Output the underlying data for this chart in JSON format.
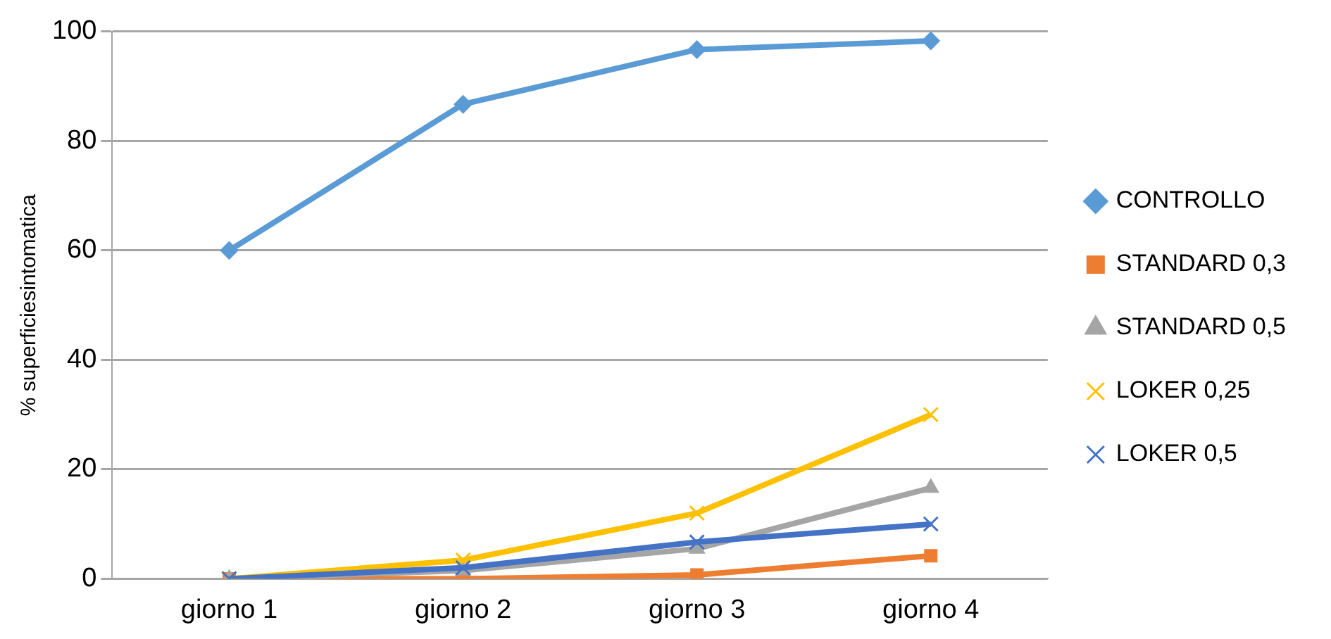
{
  "chart_data": {
    "type": "line",
    "ylabel": "% superficiesintomatica",
    "categories": [
      "giorno 1",
      "giorno 2",
      "giorno 3",
      "giorno 4"
    ],
    "series": [
      {
        "name": "CONTROLLO",
        "color": "#5b9bd5",
        "marker": "diamond",
        "values": [
          60,
          86.7,
          96.7,
          98.3
        ]
      },
      {
        "name": "STANDARD 0,3",
        "color": "#ed7d31",
        "marker": "square",
        "values": [
          0,
          0,
          0.7,
          4.2
        ]
      },
      {
        "name": "STANDARD 0,5",
        "color": "#a5a5a5",
        "marker": "triangle",
        "values": [
          0,
          1.5,
          5.5,
          16.6
        ]
      },
      {
        "name": "LOKER 0,25",
        "color": "#ffc000",
        "marker": "cross",
        "values": [
          0,
          3.4,
          12,
          30
        ]
      },
      {
        "name": "LOKER 0,5",
        "color": "#4472c4",
        "marker": "cross",
        "values": [
          0,
          2,
          6.7,
          10
        ]
      }
    ],
    "ylim": [
      0,
      100
    ],
    "yticks": [
      0,
      20,
      40,
      60,
      80,
      100
    ],
    "grid": "y",
    "legend": "right",
    "line_style": "solid"
  }
}
